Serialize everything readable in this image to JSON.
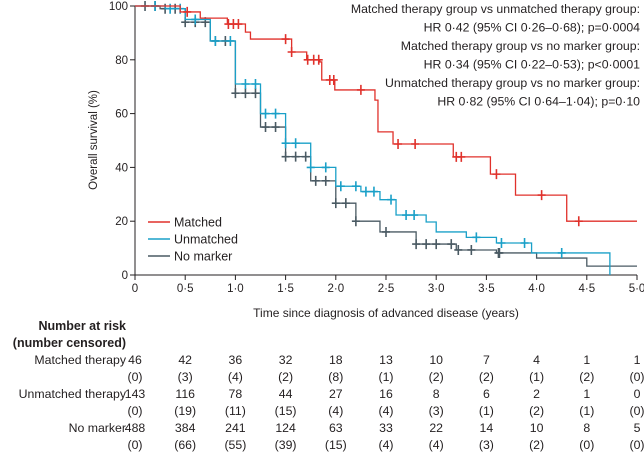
{
  "chart_data": {
    "type": "line",
    "subtype": "kaplan-meier step",
    "xlabel": "Time since diagnosis of advanced disease (years)",
    "ylabel": "Overall survival (%)",
    "xlim": [
      0,
      5
    ],
    "ylim": [
      0,
      100
    ],
    "xticks": [
      "0",
      "0·5",
      "1·0",
      "1·5",
      "2·0",
      "2·5",
      "3·0",
      "3·5",
      "4·0",
      "4·5",
      "5·0"
    ],
    "yticks": [
      "0",
      "20",
      "40",
      "60",
      "80",
      "100"
    ],
    "grid": false,
    "legend_placement": "bottom-left",
    "series": [
      {
        "name": "Matched",
        "color": "#e0312b",
        "steps": [
          [
            0,
            100
          ],
          [
            0.45,
            97.8
          ],
          [
            0.65,
            95.5
          ],
          [
            0.92,
            93.3
          ],
          [
            1.1,
            90.3
          ],
          [
            1.15,
            87.7
          ],
          [
            1.56,
            82.9
          ],
          [
            1.71,
            80
          ],
          [
            1.84,
            79.2
          ],
          [
            1.86,
            72.5
          ],
          [
            1.99,
            68.8
          ],
          [
            2.39,
            65
          ],
          [
            2.42,
            53.2
          ],
          [
            2.57,
            48.7
          ],
          [
            3.17,
            43.9
          ],
          [
            3.54,
            37.5
          ],
          [
            3.79,
            29.7
          ],
          [
            4.3,
            20
          ],
          [
            5.0,
            20
          ]
        ],
        "censored": [
          0.52,
          0.93,
          0.98,
          1.03,
          1.5,
          1.56,
          1.72,
          1.78,
          1.83,
          1.94,
          1.98,
          2.25,
          2.62,
          2.79,
          3.2,
          3.25,
          3.6,
          4.05,
          4.42
        ]
      },
      {
        "name": "Unmatched",
        "color": "#1aa0c8",
        "steps": [
          [
            0,
            100
          ],
          [
            0.3,
            99
          ],
          [
            0.5,
            95
          ],
          [
            0.75,
            87
          ],
          [
            1.0,
            71
          ],
          [
            1.25,
            60
          ],
          [
            1.5,
            49
          ],
          [
            1.75,
            40
          ],
          [
            2.0,
            33
          ],
          [
            2.25,
            31
          ],
          [
            2.44,
            28
          ],
          [
            2.6,
            22.3
          ],
          [
            2.9,
            19.7
          ],
          [
            3.0,
            16
          ],
          [
            3.3,
            14
          ],
          [
            3.6,
            11.9
          ],
          [
            3.95,
            8.2
          ],
          [
            4.73,
            0
          ]
        ],
        "censored": [
          0.2,
          0.35,
          0.45,
          0.6,
          0.8,
          0.95,
          1.1,
          1.2,
          1.3,
          1.4,
          1.5,
          1.6,
          1.75,
          1.9,
          2.05,
          2.2,
          2.3,
          2.38,
          2.55,
          2.7,
          2.78,
          3.4,
          3.65,
          3.88,
          4.25
        ]
      },
      {
        "name": "No marker",
        "color": "#4a5a63",
        "steps": [
          [
            0,
            100
          ],
          [
            0.25,
            99
          ],
          [
            0.5,
            94
          ],
          [
            0.75,
            87
          ],
          [
            1.0,
            67.6
          ],
          [
            1.25,
            55
          ],
          [
            1.5,
            44
          ],
          [
            1.75,
            35
          ],
          [
            2.0,
            26.7
          ],
          [
            2.2,
            20
          ],
          [
            2.44,
            16
          ],
          [
            2.8,
            11.5
          ],
          [
            3.2,
            9.3
          ],
          [
            3.6,
            8.2
          ],
          [
            4.0,
            6.3
          ],
          [
            4.5,
            3.3
          ],
          [
            5.0,
            3.3
          ]
        ],
        "censored": [
          0.1,
          0.2,
          0.3,
          0.4,
          0.5,
          0.6,
          0.7,
          0.8,
          0.9,
          1.0,
          1.1,
          1.2,
          1.3,
          1.4,
          1.5,
          1.6,
          1.7,
          1.8,
          1.9,
          2.0,
          2.1,
          2.2,
          2.5,
          2.8,
          2.9,
          3.0,
          3.15,
          3.22,
          3.35,
          3.62,
          3.63
        ]
      }
    ],
    "annotations": [
      "Matched therapy group vs unmatched therapy group:",
      "HR 0·42 (95% CI 0·26–0·68); p=0·0004",
      "Matched therapy group vs no marker group:",
      "HR 0·34 (95% CI 0·22–0·53); p<0·0001",
      "Unmatched therapy group vs no marker group:",
      "HR 0·82 (95% CI 0·64–1·04); p=0·10"
    ],
    "risk_table": {
      "title": "Number at risk",
      "subtitle": "(number censored)",
      "rows": [
        {
          "label": "Matched therapy",
          "at_risk": [
            "46",
            "42",
            "36",
            "32",
            "18",
            "13",
            "10",
            "7",
            "4",
            "1",
            "1"
          ],
          "censored": [
            "(0)",
            "(3)",
            "(4)",
            "(2)",
            "(8)",
            "(1)",
            "(2)",
            "(2)",
            "(1)",
            "(2)",
            "(0)"
          ]
        },
        {
          "label": "Unmatched therapy",
          "at_risk": [
            "143",
            "116",
            "78",
            "44",
            "27",
            "16",
            "8",
            "6",
            "2",
            "1",
            "0"
          ],
          "censored": [
            "(0)",
            "(19)",
            "(11)",
            "(15)",
            "(4)",
            "(4)",
            "(3)",
            "(1)",
            "(2)",
            "(1)",
            "(0)"
          ]
        },
        {
          "label": "No marker",
          "at_risk": [
            "488",
            "384",
            "241",
            "124",
            "63",
            "33",
            "22",
            "14",
            "10",
            "8",
            "5"
          ],
          "censored": [
            "(0)",
            "(66)",
            "(55)",
            "(39)",
            "(15)",
            "(4)",
            "(4)",
            "(3)",
            "(2)",
            "(0)",
            "(0)"
          ]
        }
      ]
    }
  }
}
